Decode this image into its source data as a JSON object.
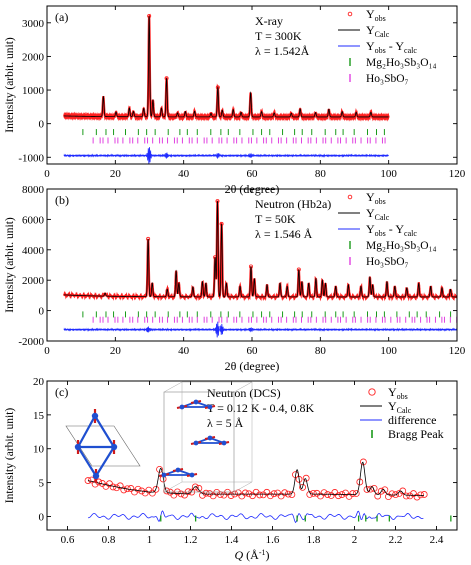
{
  "figure": {
    "panels": [
      {
        "id": "a",
        "panel_label": "(a)",
        "legend_labels": {
          "yobs": "Y",
          "yobs_sub": "obs",
          "ycalc": "Y",
          "ycalc_sub": "Calc",
          "diff_a": "Y",
          "diff_a_sub": "obs",
          "diff_b": " - Y",
          "diff_b_sub": "calc",
          "phase1": "Mg₂Ho₃Sb₃O₁₄",
          "phase2": "Ho₃SbO₇"
        },
        "info": [
          "X-ray",
          "T = 300K",
          "λ = 1.542Å"
        ]
      },
      {
        "id": "b",
        "panel_label": "(b)",
        "legend_labels": {
          "yobs": "Y",
          "yobs_sub": "obs",
          "ycalc": "Y",
          "ycalc_sub": "Calc",
          "diff_a": "Y",
          "diff_a_sub": "obs",
          "diff_b": " - Y",
          "diff_b_sub": "calc",
          "phase1": "Mg₂Ho₃Sb₃O₁₄",
          "phase2": "Ho₃SbO₇"
        },
        "info": [
          "Neutron (Hb2a)",
          "T = 50K",
          "λ = 1.546 Å"
        ]
      },
      {
        "id": "c",
        "panel_label": "(c)",
        "legend_labels": {
          "yobs": "Y",
          "yobs_sub": "obs",
          "ycalc": "Y",
          "ycalc_sub": "Calc",
          "diff": "difference",
          "bragg": "Bragg Peak"
        },
        "info": [
          "Neutron (DCS)",
          "T = 0.12 K - 0.4, 0.8K",
          "λ = 5 Å"
        ]
      }
    ]
  },
  "chart_data": [
    {
      "type": "line",
      "panel": "a",
      "xlabel": "2θ (degree)",
      "ylabel": "Intensity (arbit. unit)",
      "xlim": [
        0,
        120
      ],
      "ylim": [
        -1200,
        3500
      ],
      "x_ticks": [
        0,
        20,
        40,
        60,
        80,
        100,
        120
      ],
      "y_ticks": [
        -1000,
        0,
        1000,
        2000,
        3000
      ],
      "background": 200,
      "range": [
        5,
        100
      ],
      "peaks": [
        [
          16.5,
          600
        ],
        [
          20.2,
          140
        ],
        [
          24.1,
          260
        ],
        [
          25.3,
          160
        ],
        [
          28.3,
          250
        ],
        [
          29.9,
          3000
        ],
        [
          31.0,
          500
        ],
        [
          33.5,
          260
        ],
        [
          35.0,
          1150
        ],
        [
          38.2,
          120
        ],
        [
          40.5,
          160
        ],
        [
          43.2,
          170
        ],
        [
          48.0,
          110
        ],
        [
          50.0,
          880
        ],
        [
          51.3,
          200
        ],
        [
          54.5,
          220
        ],
        [
          56.8,
          140
        ],
        [
          59.6,
          720
        ],
        [
          62.8,
          160
        ],
        [
          66.5,
          120
        ],
        [
          71.5,
          110
        ],
        [
          74.1,
          240
        ],
        [
          78.6,
          130
        ],
        [
          82.5,
          230
        ],
        [
          86.4,
          160
        ],
        [
          90.5,
          140
        ],
        [
          94.8,
          140
        ]
      ],
      "diff_baseline": -950,
      "diff_features": [
        [
          29.9,
          260
        ],
        [
          35.0,
          80
        ],
        [
          50.0,
          60
        ],
        [
          59.6,
          50
        ]
      ],
      "phase1_tick_y": -250,
      "phase2_tick_y": -500,
      "series": [
        {
          "name": "Yobs"
        },
        {
          "name": "YCalc"
        },
        {
          "name": "Yobs - Ycalc"
        },
        {
          "name": "Mg2Ho3Sb3O14"
        },
        {
          "name": "Ho3SbO7"
        }
      ],
      "colors": {
        "obs": "#ff2020",
        "calc": "#000000",
        "diff": "#1f2bff",
        "phase1": "#1a9a1a",
        "phase2": "#e040e0"
      }
    },
    {
      "type": "line",
      "panel": "b",
      "xlabel": "2θ (degree)",
      "ylabel": "Intensity (arbit. unit)",
      "xlim": [
        0,
        120
      ],
      "ylim": [
        -2000,
        8000
      ],
      "x_ticks": [
        0,
        20,
        40,
        60,
        80,
        100,
        120
      ],
      "y_ticks": [
        -2000,
        0,
        2000,
        4000,
        6000,
        8000
      ],
      "background": 900,
      "range": [
        5,
        120
      ],
      "peaks": [
        [
          17.0,
          200
        ],
        [
          29.6,
          3800
        ],
        [
          30.8,
          900
        ],
        [
          35.2,
          500
        ],
        [
          37.8,
          1700
        ],
        [
          38.6,
          900
        ],
        [
          42.7,
          650
        ],
        [
          45.5,
          1000
        ],
        [
          46.5,
          900
        ],
        [
          49.2,
          2600
        ],
        [
          49.9,
          6300
        ],
        [
          51.1,
          4800
        ],
        [
          52.5,
          900
        ],
        [
          56.5,
          700
        ],
        [
          59.7,
          2000
        ],
        [
          60.7,
          1200
        ],
        [
          64.4,
          800
        ],
        [
          68.2,
          900
        ],
        [
          70.3,
          700
        ],
        [
          73.7,
          1800
        ],
        [
          74.6,
          1000
        ],
        [
          76.6,
          900
        ],
        [
          78.7,
          1200
        ],
        [
          80.6,
          1100
        ],
        [
          81.5,
          900
        ],
        [
          84.5,
          700
        ],
        [
          88.2,
          800
        ],
        [
          91.9,
          700
        ],
        [
          94.5,
          1300
        ],
        [
          95.3,
          800
        ],
        [
          99.5,
          1000
        ],
        [
          101.8,
          700
        ],
        [
          105.3,
          600
        ],
        [
          108.8,
          900
        ],
        [
          112.3,
          700
        ],
        [
          115.6,
          600
        ],
        [
          118.1,
          500
        ]
      ],
      "diff_baseline": -1250,
      "diff_features": [
        [
          29.6,
          180
        ],
        [
          49.9,
          500
        ],
        [
          51.1,
          350
        ],
        [
          59.7,
          120
        ]
      ],
      "phase1_tick_y": -250,
      "phase2_tick_y": -600,
      "series": [
        {
          "name": "Yobs"
        },
        {
          "name": "YCalc"
        },
        {
          "name": "Yobs - Ycalc"
        },
        {
          "name": "Mg2Ho3Sb3O14"
        },
        {
          "name": "Ho3SbO7"
        }
      ],
      "colors": {
        "obs": "#ff2020",
        "calc": "#000000",
        "diff": "#1f2bff",
        "phase1": "#1a9a1a",
        "phase2": "#e040e0"
      }
    },
    {
      "type": "line",
      "panel": "c",
      "xlabel": "Q (Å⁻¹)",
      "ylabel": "Intensity (arbit. unit)",
      "xlim": [
        0.5,
        2.5
      ],
      "ylim": [
        -2,
        20
      ],
      "x_ticks": [
        0.6,
        0.8,
        1.0,
        1.2,
        1.4,
        1.6,
        1.8,
        2.0,
        2.2,
        2.4
      ],
      "y_ticks": [
        0,
        5,
        10,
        15,
        20
      ],
      "range": [
        0.7,
        2.34
      ],
      "background_curve": [
        [
          0.7,
          5.3
        ],
        [
          0.8,
          4.6
        ],
        [
          0.9,
          4.0
        ],
        [
          1.0,
          3.6
        ],
        [
          1.2,
          3.3
        ],
        [
          1.5,
          3.3
        ],
        [
          1.8,
          3.3
        ],
        [
          2.1,
          3.2
        ],
        [
          2.34,
          3.1
        ]
      ],
      "peaks": [
        [
          1.055,
          3.6,
          0.012
        ],
        [
          1.225,
          1.1,
          0.015
        ],
        [
          1.72,
          3.6,
          0.01
        ],
        [
          1.76,
          2.3,
          0.01
        ],
        [
          2.04,
          4.8,
          0.011
        ],
        [
          2.085,
          1.2,
          0.01
        ],
        [
          2.14,
          0.8,
          0.01
        ],
        [
          2.225,
          0.6,
          0.01
        ]
      ],
      "obs_points": 95,
      "diff_baseline": 0,
      "bragg_tick_y": -0.3,
      "bragg_positions": [
        1.055,
        1.225,
        1.72,
        1.76,
        2.02,
        2.055,
        2.11,
        2.17,
        2.47
      ],
      "series": [
        {
          "name": "Yobs"
        },
        {
          "name": "YCalc"
        },
        {
          "name": "difference"
        },
        {
          "name": "Bragg Peak"
        }
      ],
      "colors": {
        "obs": "#ff2020",
        "calc": "#000000",
        "diff": "#1f2bff",
        "bragg": "#1a9a1a"
      }
    }
  ]
}
